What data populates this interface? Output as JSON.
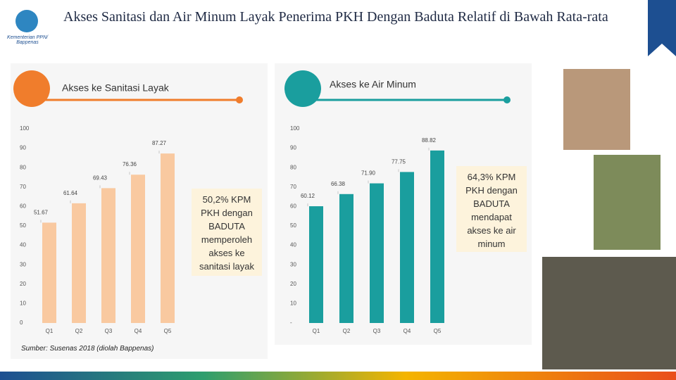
{
  "slide": {
    "title": "Akses Sanitasi dan Air Minum Layak Penerima PKH Dengan Baduta Relatif di Bawah Rata-rata",
    "logo": "Kementerian PPN/ Bappenas",
    "callouts": [
      "50,2% KPM PKH dengan BADUTA memperoleh akses ke sanitasi layak",
      "64,3% KPM PKH dengan BADUTA mendapat akses ke air minum"
    ],
    "source": "Sumber: Susenas 2018 (diolah Bappenas)"
  },
  "chart_data": [
    {
      "type": "bar",
      "title": "Akses ke Sanitasi Layak",
      "categories": [
        "Q1",
        "Q2",
        "Q3",
        "Q4",
        "Q5"
      ],
      "values": [
        51.67,
        61.64,
        69.43,
        76.36,
        87.27
      ],
      "color": "#f9c9a0",
      "ylim": [
        0,
        100
      ],
      "yticks": [
        0,
        10,
        20,
        30,
        40,
        50,
        60,
        70,
        80,
        90,
        100
      ]
    },
    {
      "type": "bar",
      "title": "Akses ke Air Minum",
      "categories": [
        "Q1",
        "Q2",
        "Q3",
        "Q4",
        "Q5"
      ],
      "values": [
        60.12,
        66.38,
        71.9,
        77.75,
        88.82
      ],
      "value_labels": [
        "60.12",
        "66.38",
        "71.90",
        "77.75",
        "88.82"
      ],
      "color": "#1a9e9e",
      "ylim": [
        0,
        100
      ],
      "yticks": [
        {
          "value": 0,
          "label": "-"
        },
        10,
        20,
        30,
        40,
        50,
        60,
        70,
        80,
        90,
        100
      ]
    }
  ]
}
